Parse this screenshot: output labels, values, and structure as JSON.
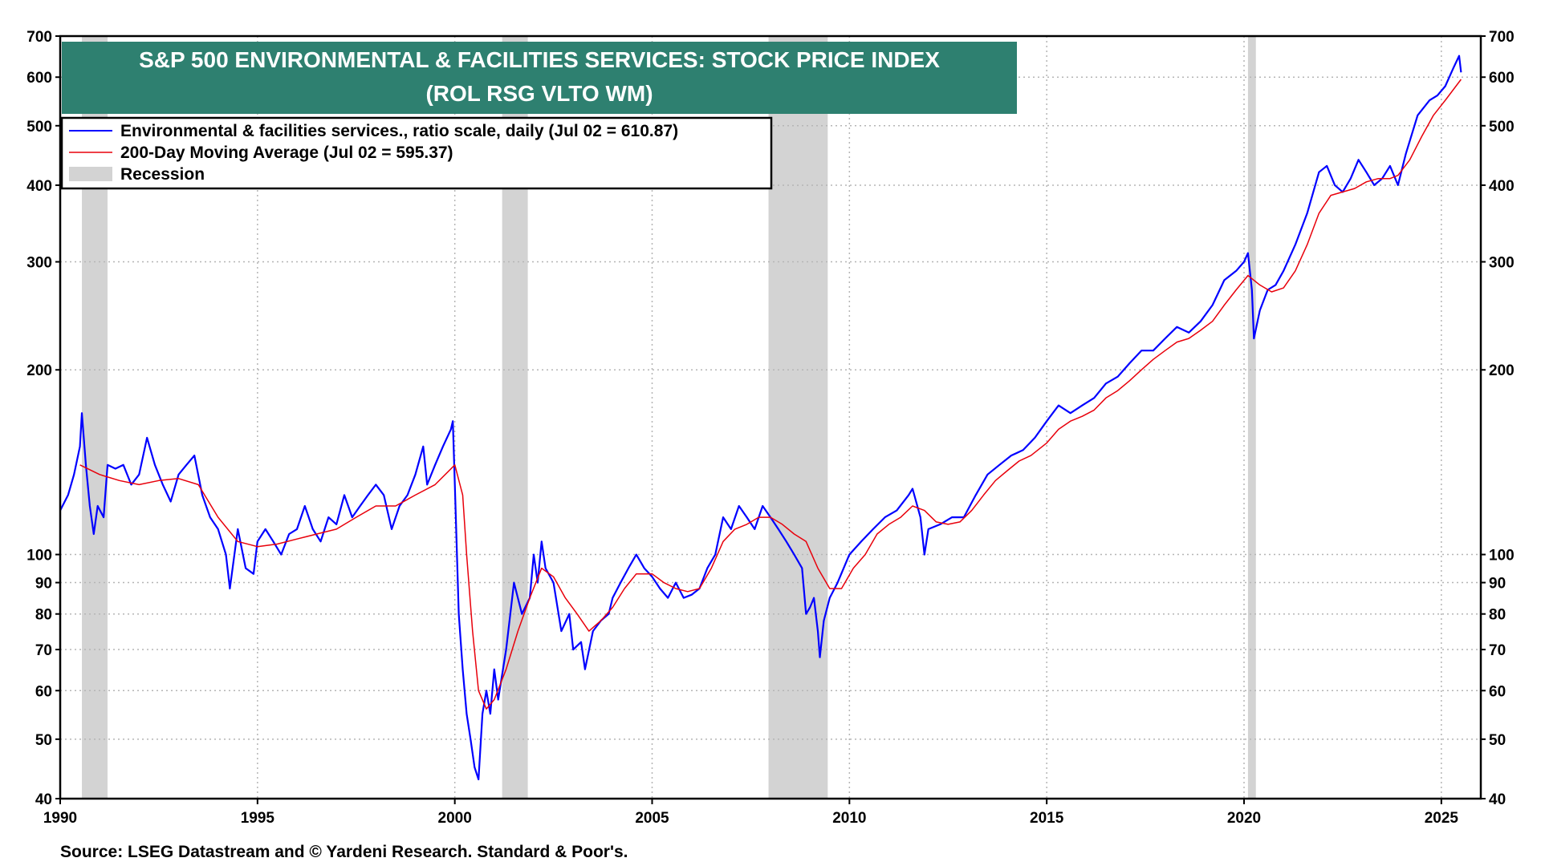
{
  "chart_data": {
    "type": "line",
    "title": "S&P 500 ENVIRONMENTAL & FACILITIES SERVICES: STOCK PRICE INDEX",
    "subtitle": "(ROL RSG VLTO WM)",
    "y_scale": "log",
    "ylim": [
      40,
      700
    ],
    "xlim": [
      1990,
      2026
    ],
    "y_ticks": [
      40,
      50,
      60,
      70,
      80,
      90,
      100,
      200,
      300,
      400,
      500,
      600,
      700
    ],
    "x_ticks": [
      1990,
      1995,
      2000,
      2005,
      2010,
      2015,
      2020,
      2025
    ],
    "grid": true,
    "legend_position": "top-left",
    "legend": {
      "price_label": "Environmental & facilities services., ratio scale, daily (Jul 02 = 610.87)",
      "ma_label": "200-Day Moving Average (Jul 02 = 595.37)",
      "recession_label": "Recession"
    },
    "recessions": [
      [
        1990.55,
        1991.2
      ],
      [
        2001.2,
        2001.85
      ],
      [
        2007.95,
        2009.45
      ],
      [
        2020.1,
        2020.3
      ]
    ],
    "series": [
      {
        "name": "Environmental & facilities services., ratio scale, daily (Jul 02 = 610.87)",
        "color": "#0000ff",
        "points": [
          [
            1990.0,
            118
          ],
          [
            1990.2,
            125
          ],
          [
            1990.35,
            135
          ],
          [
            1990.5,
            150
          ],
          [
            1990.55,
            170
          ],
          [
            1990.65,
            140
          ],
          [
            1990.75,
            120
          ],
          [
            1990.85,
            108
          ],
          [
            1990.95,
            120
          ],
          [
            1991.1,
            115
          ],
          [
            1991.2,
            140
          ],
          [
            1991.4,
            138
          ],
          [
            1991.6,
            140
          ],
          [
            1991.8,
            130
          ],
          [
            1992.0,
            135
          ],
          [
            1992.2,
            155
          ],
          [
            1992.4,
            140
          ],
          [
            1992.6,
            130
          ],
          [
            1992.8,
            122
          ],
          [
            1993.0,
            135
          ],
          [
            1993.2,
            140
          ],
          [
            1993.4,
            145
          ],
          [
            1993.6,
            125
          ],
          [
            1993.8,
            115
          ],
          [
            1994.0,
            110
          ],
          [
            1994.2,
            100
          ],
          [
            1994.3,
            88
          ],
          [
            1994.5,
            110
          ],
          [
            1994.7,
            95
          ],
          [
            1994.9,
            93
          ],
          [
            1995.0,
            105
          ],
          [
            1995.2,
            110
          ],
          [
            1995.4,
            105
          ],
          [
            1995.6,
            100
          ],
          [
            1995.8,
            108
          ],
          [
            1996.0,
            110
          ],
          [
            1996.2,
            120
          ],
          [
            1996.4,
            110
          ],
          [
            1996.6,
            105
          ],
          [
            1996.8,
            115
          ],
          [
            1997.0,
            112
          ],
          [
            1997.2,
            125
          ],
          [
            1997.4,
            115
          ],
          [
            1997.6,
            120
          ],
          [
            1997.8,
            125
          ],
          [
            1998.0,
            130
          ],
          [
            1998.2,
            125
          ],
          [
            1998.4,
            110
          ],
          [
            1998.6,
            120
          ],
          [
            1998.8,
            125
          ],
          [
            1999.0,
            135
          ],
          [
            1999.2,
            150
          ],
          [
            1999.3,
            130
          ],
          [
            1999.5,
            140
          ],
          [
            1999.7,
            150
          ],
          [
            1999.9,
            160
          ],
          [
            1999.95,
            165
          ],
          [
            2000.0,
            130
          ],
          [
            2000.1,
            80
          ],
          [
            2000.2,
            65
          ],
          [
            2000.3,
            55
          ],
          [
            2000.4,
            50
          ],
          [
            2000.5,
            45
          ],
          [
            2000.6,
            43
          ],
          [
            2000.7,
            55
          ],
          [
            2000.8,
            60
          ],
          [
            2000.9,
            55
          ],
          [
            2001.0,
            65
          ],
          [
            2001.1,
            58
          ],
          [
            2001.3,
            70
          ],
          [
            2001.5,
            90
          ],
          [
            2001.7,
            80
          ],
          [
            2001.9,
            85
          ],
          [
            2002.0,
            100
          ],
          [
            2002.1,
            90
          ],
          [
            2002.2,
            105
          ],
          [
            2002.3,
            95
          ],
          [
            2002.5,
            90
          ],
          [
            2002.7,
            75
          ],
          [
            2002.9,
            80
          ],
          [
            2003.0,
            70
          ],
          [
            2003.2,
            72
          ],
          [
            2003.3,
            65
          ],
          [
            2003.5,
            75
          ],
          [
            2003.7,
            78
          ],
          [
            2003.9,
            80
          ],
          [
            2004.0,
            85
          ],
          [
            2004.2,
            90
          ],
          [
            2004.4,
            95
          ],
          [
            2004.6,
            100
          ],
          [
            2004.8,
            95
          ],
          [
            2005.0,
            92
          ],
          [
            2005.2,
            88
          ],
          [
            2005.4,
            85
          ],
          [
            2005.6,
            90
          ],
          [
            2005.8,
            85
          ],
          [
            2006.0,
            86
          ],
          [
            2006.2,
            88
          ],
          [
            2006.4,
            95
          ],
          [
            2006.6,
            100
          ],
          [
            2006.8,
            115
          ],
          [
            2007.0,
            110
          ],
          [
            2007.2,
            120
          ],
          [
            2007.4,
            115
          ],
          [
            2007.6,
            110
          ],
          [
            2007.8,
            120
          ],
          [
            2008.0,
            115
          ],
          [
            2008.2,
            110
          ],
          [
            2008.4,
            105
          ],
          [
            2008.6,
            100
          ],
          [
            2008.8,
            95
          ],
          [
            2008.9,
            80
          ],
          [
            2009.0,
            82
          ],
          [
            2009.1,
            85
          ],
          [
            2009.2,
            75
          ],
          [
            2009.25,
            68
          ],
          [
            2009.35,
            78
          ],
          [
            2009.5,
            85
          ],
          [
            2009.7,
            90
          ],
          [
            2010.0,
            100
          ],
          [
            2010.3,
            105
          ],
          [
            2010.6,
            110
          ],
          [
            2010.9,
            115
          ],
          [
            2011.2,
            118
          ],
          [
            2011.5,
            125
          ],
          [
            2011.6,
            128
          ],
          [
            2011.8,
            115
          ],
          [
            2011.9,
            100
          ],
          [
            2012.0,
            110
          ],
          [
            2012.3,
            112
          ],
          [
            2012.6,
            115
          ],
          [
            2012.9,
            115
          ],
          [
            2013.2,
            125
          ],
          [
            2013.5,
            135
          ],
          [
            2013.8,
            140
          ],
          [
            2014.1,
            145
          ],
          [
            2014.4,
            148
          ],
          [
            2014.7,
            155
          ],
          [
            2015.0,
            165
          ],
          [
            2015.3,
            175
          ],
          [
            2015.6,
            170
          ],
          [
            2015.9,
            175
          ],
          [
            2016.2,
            180
          ],
          [
            2016.5,
            190
          ],
          [
            2016.8,
            195
          ],
          [
            2017.1,
            205
          ],
          [
            2017.4,
            215
          ],
          [
            2017.7,
            215
          ],
          [
            2018.0,
            225
          ],
          [
            2018.3,
            235
          ],
          [
            2018.6,
            230
          ],
          [
            2018.9,
            240
          ],
          [
            2019.2,
            255
          ],
          [
            2019.5,
            280
          ],
          [
            2019.8,
            290
          ],
          [
            2020.0,
            300
          ],
          [
            2020.1,
            310
          ],
          [
            2020.2,
            270
          ],
          [
            2020.25,
            225
          ],
          [
            2020.4,
            250
          ],
          [
            2020.6,
            270
          ],
          [
            2020.8,
            275
          ],
          [
            2021.0,
            290
          ],
          [
            2021.3,
            320
          ],
          [
            2021.6,
            360
          ],
          [
            2021.9,
            420
          ],
          [
            2022.1,
            430
          ],
          [
            2022.3,
            400
          ],
          [
            2022.5,
            390
          ],
          [
            2022.7,
            410
          ],
          [
            2022.9,
            440
          ],
          [
            2023.1,
            420
          ],
          [
            2023.3,
            400
          ],
          [
            2023.5,
            410
          ],
          [
            2023.7,
            430
          ],
          [
            2023.9,
            400
          ],
          [
            2024.1,
            450
          ],
          [
            2024.4,
            520
          ],
          [
            2024.7,
            550
          ],
          [
            2024.9,
            560
          ],
          [
            2025.1,
            580
          ],
          [
            2025.3,
            620
          ],
          [
            2025.45,
            650
          ],
          [
            2025.5,
            611
          ]
        ]
      },
      {
        "name": "200-Day Moving Average (Jul 02 = 595.37)",
        "color": "#e8000b",
        "points": [
          [
            1990.5,
            140
          ],
          [
            1991.0,
            135
          ],
          [
            1991.5,
            132
          ],
          [
            1992.0,
            130
          ],
          [
            1992.5,
            132
          ],
          [
            1993.0,
            133
          ],
          [
            1993.5,
            130
          ],
          [
            1994.0,
            115
          ],
          [
            1994.5,
            105
          ],
          [
            1995.0,
            103
          ],
          [
            1995.5,
            104
          ],
          [
            1996.0,
            106
          ],
          [
            1996.5,
            108
          ],
          [
            1997.0,
            110
          ],
          [
            1997.5,
            115
          ],
          [
            1998.0,
            120
          ],
          [
            1998.5,
            120
          ],
          [
            1999.0,
            125
          ],
          [
            1999.5,
            130
          ],
          [
            2000.0,
            140
          ],
          [
            2000.2,
            125
          ],
          [
            2000.3,
            100
          ],
          [
            2000.45,
            75
          ],
          [
            2000.6,
            60
          ],
          [
            2000.8,
            56
          ],
          [
            2001.0,
            58
          ],
          [
            2001.3,
            65
          ],
          [
            2001.6,
            75
          ],
          [
            2001.9,
            85
          ],
          [
            2002.2,
            95
          ],
          [
            2002.5,
            92
          ],
          [
            2002.8,
            85
          ],
          [
            2003.1,
            80
          ],
          [
            2003.4,
            75
          ],
          [
            2003.7,
            78
          ],
          [
            2004.0,
            82
          ],
          [
            2004.3,
            88
          ],
          [
            2004.6,
            93
          ],
          [
            2005.0,
            93
          ],
          [
            2005.3,
            90
          ],
          [
            2005.6,
            88
          ],
          [
            2005.9,
            87
          ],
          [
            2006.2,
            88
          ],
          [
            2006.5,
            95
          ],
          [
            2006.8,
            105
          ],
          [
            2007.1,
            110
          ],
          [
            2007.4,
            112
          ],
          [
            2007.7,
            115
          ],
          [
            2008.0,
            115
          ],
          [
            2008.3,
            112
          ],
          [
            2008.6,
            108
          ],
          [
            2008.9,
            105
          ],
          [
            2009.2,
            95
          ],
          [
            2009.5,
            88
          ],
          [
            2009.8,
            88
          ],
          [
            2010.1,
            95
          ],
          [
            2010.4,
            100
          ],
          [
            2010.7,
            108
          ],
          [
            2011.0,
            112
          ],
          [
            2011.3,
            115
          ],
          [
            2011.6,
            120
          ],
          [
            2011.9,
            118
          ],
          [
            2012.2,
            113
          ],
          [
            2012.5,
            112
          ],
          [
            2012.8,
            113
          ],
          [
            2013.1,
            118
          ],
          [
            2013.4,
            125
          ],
          [
            2013.7,
            132
          ],
          [
            2014.0,
            137
          ],
          [
            2014.3,
            142
          ],
          [
            2014.6,
            145
          ],
          [
            2015.0,
            152
          ],
          [
            2015.3,
            160
          ],
          [
            2015.6,
            165
          ],
          [
            2015.9,
            168
          ],
          [
            2016.2,
            172
          ],
          [
            2016.5,
            180
          ],
          [
            2016.8,
            185
          ],
          [
            2017.1,
            192
          ],
          [
            2017.4,
            200
          ],
          [
            2017.7,
            208
          ],
          [
            2018.0,
            215
          ],
          [
            2018.3,
            222
          ],
          [
            2018.6,
            225
          ],
          [
            2018.9,
            232
          ],
          [
            2019.2,
            240
          ],
          [
            2019.5,
            255
          ],
          [
            2019.8,
            270
          ],
          [
            2020.1,
            285
          ],
          [
            2020.4,
            275
          ],
          [
            2020.7,
            268
          ],
          [
            2021.0,
            272
          ],
          [
            2021.3,
            290
          ],
          [
            2021.6,
            320
          ],
          [
            2021.9,
            360
          ],
          [
            2022.2,
            385
          ],
          [
            2022.5,
            390
          ],
          [
            2022.8,
            395
          ],
          [
            2023.1,
            405
          ],
          [
            2023.4,
            410
          ],
          [
            2023.7,
            410
          ],
          [
            2023.9,
            415
          ],
          [
            2024.2,
            440
          ],
          [
            2024.5,
            480
          ],
          [
            2024.8,
            520
          ],
          [
            2025.1,
            550
          ],
          [
            2025.5,
            595
          ]
        ]
      }
    ],
    "recession_color": "#d3d3d3"
  },
  "footer": {
    "source": "Source: LSEG Datastream and © Yardeni Research. Standard & Poor's."
  }
}
